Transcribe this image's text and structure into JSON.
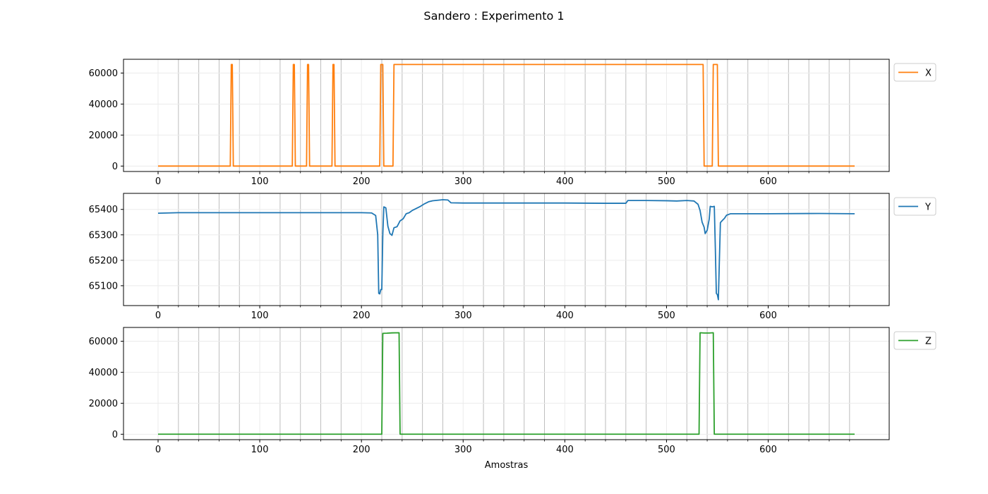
{
  "figure": {
    "title": "Sandero : Experimento 1"
  },
  "chart_data": [
    {
      "type": "line",
      "xlabel": "",
      "ylabel": "",
      "xlim": [
        -34,
        719
      ],
      "ylim": [
        -3500,
        68900
      ],
      "x_ticks": [
        0,
        100,
        200,
        300,
        400,
        500,
        600
      ],
      "x_minor_ticks": [
        20,
        40,
        60,
        80,
        120,
        140,
        160,
        180,
        220,
        240,
        260,
        280,
        320,
        340,
        360,
        380,
        420,
        440,
        460,
        480,
        520,
        540,
        560,
        580,
        620,
        640,
        660,
        680
      ],
      "y_ticks": [
        0,
        20000,
        40000,
        60000
      ],
      "grid": true,
      "legend": "right",
      "series": [
        {
          "name": "X",
          "color": "#ff7f0e",
          "points": [
            [
              0,
              0
            ],
            [
              71,
              0
            ],
            [
              72,
              65535
            ],
            [
              73,
              65535
            ],
            [
              74,
              0
            ],
            [
              132,
              0
            ],
            [
              133,
              65535
            ],
            [
              134,
              65535
            ],
            [
              135,
              0
            ],
            [
              146,
              0
            ],
            [
              147,
              65535
            ],
            [
              148,
              65535
            ],
            [
              149,
              0
            ],
            [
              171,
              0
            ],
            [
              172,
              65535
            ],
            [
              173,
              65535
            ],
            [
              174,
              0
            ],
            [
              218,
              0
            ],
            [
              219,
              65535
            ],
            [
              220,
              65535
            ],
            [
              221,
              65535
            ],
            [
              222,
              0
            ],
            [
              231,
              0
            ],
            [
              232,
              65535
            ],
            [
              536,
              65535
            ],
            [
              537,
              0
            ],
            [
              545,
              0
            ],
            [
              546,
              65535
            ],
            [
              550,
              65535
            ],
            [
              551,
              0
            ],
            [
              685,
              0
            ]
          ]
        }
      ]
    },
    {
      "type": "line",
      "xlabel": "",
      "ylabel": "",
      "xlim": [
        -34,
        719
      ],
      "ylim": [
        65022,
        65463
      ],
      "x_ticks": [
        0,
        100,
        200,
        300,
        400,
        500,
        600
      ],
      "x_minor_ticks": [
        20,
        40,
        60,
        80,
        120,
        140,
        160,
        180,
        220,
        240,
        260,
        280,
        320,
        340,
        360,
        380,
        420,
        440,
        460,
        480,
        520,
        540,
        560,
        580,
        620,
        640,
        660,
        680
      ],
      "y_ticks": [
        65100,
        65200,
        65300,
        65400
      ],
      "grid": true,
      "legend": "right",
      "series": [
        {
          "name": "Y",
          "color": "#1f77b4",
          "points": [
            [
              0,
              65385
            ],
            [
              20,
              65387
            ],
            [
              50,
              65387
            ],
            [
              100,
              65387
            ],
            [
              150,
              65387
            ],
            [
              200,
              65387
            ],
            [
              210,
              65386
            ],
            [
              214,
              65376
            ],
            [
              216,
              65300
            ],
            [
              217,
              65070
            ],
            [
              218,
              65068
            ],
            [
              219,
              65085
            ],
            [
              220,
              65085
            ],
            [
              221,
              65300
            ],
            [
              222,
              65410
            ],
            [
              224,
              65406
            ],
            [
              226,
              65334
            ],
            [
              228,
              65305
            ],
            [
              230,
              65298
            ],
            [
              232,
              65328
            ],
            [
              235,
              65332
            ],
            [
              238,
              65355
            ],
            [
              241,
              65363
            ],
            [
              244,
              65383
            ],
            [
              247,
              65387
            ],
            [
              250,
              65396
            ],
            [
              254,
              65404
            ],
            [
              258,
              65412
            ],
            [
              262,
              65422
            ],
            [
              266,
              65430
            ],
            [
              270,
              65434
            ],
            [
              275,
              65436
            ],
            [
              280,
              65438
            ],
            [
              285,
              65437
            ],
            [
              288,
              65426
            ],
            [
              300,
              65425
            ],
            [
              350,
              65425
            ],
            [
              400,
              65425
            ],
            [
              440,
              65424
            ],
            [
              460,
              65424
            ],
            [
              462,
              65435
            ],
            [
              480,
              65435
            ],
            [
              500,
              65434
            ],
            [
              510,
              65433
            ],
            [
              520,
              65435
            ],
            [
              527,
              65433
            ],
            [
              531,
              65420
            ],
            [
              533,
              65396
            ],
            [
              535,
              65350
            ],
            [
              537,
              65330
            ],
            [
              538,
              65305
            ],
            [
              540,
              65318
            ],
            [
              542,
              65362
            ],
            [
              543,
              65412
            ],
            [
              545,
              65410
            ],
            [
              547,
              65412
            ],
            [
              548,
              65250
            ],
            [
              549,
              65070
            ],
            [
              550,
              65065
            ],
            [
              551,
              65045
            ],
            [
              552,
              65200
            ],
            [
              553,
              65348
            ],
            [
              555,
              65357
            ],
            [
              557,
              65365
            ],
            [
              559,
              65377
            ],
            [
              561,
              65380
            ],
            [
              563,
              65383
            ],
            [
              600,
              65383
            ],
            [
              650,
              65384
            ],
            [
              685,
              65383
            ]
          ]
        }
      ]
    },
    {
      "type": "line",
      "xlabel": "Amostras",
      "ylabel": "",
      "xlim": [
        -34,
        719
      ],
      "ylim": [
        -3500,
        68900
      ],
      "x_ticks": [
        0,
        100,
        200,
        300,
        400,
        500,
        600
      ],
      "x_minor_ticks": [
        20,
        40,
        60,
        80,
        120,
        140,
        160,
        180,
        220,
        240,
        260,
        280,
        320,
        340,
        360,
        380,
        420,
        440,
        460,
        480,
        520,
        540,
        560,
        580,
        620,
        640,
        660,
        680
      ],
      "y_ticks": [
        0,
        20000,
        40000,
        60000
      ],
      "grid": true,
      "legend": "right",
      "series": [
        {
          "name": "Z",
          "color": "#2ca02c",
          "points": [
            [
              0,
              40
            ],
            [
              100,
              40
            ],
            [
              200,
              40
            ],
            [
              220,
              40
            ],
            [
              221,
              65100
            ],
            [
              225,
              65200
            ],
            [
              230,
              65400
            ],
            [
              237,
              65500
            ],
            [
              238,
              40
            ],
            [
              300,
              40
            ],
            [
              400,
              40
            ],
            [
              500,
              40
            ],
            [
              532,
              40
            ],
            [
              533,
              65500
            ],
            [
              537,
              65300
            ],
            [
              542,
              65300
            ],
            [
              546,
              65500
            ],
            [
              547,
              40
            ],
            [
              600,
              40
            ],
            [
              685,
              40
            ]
          ]
        }
      ]
    }
  ]
}
